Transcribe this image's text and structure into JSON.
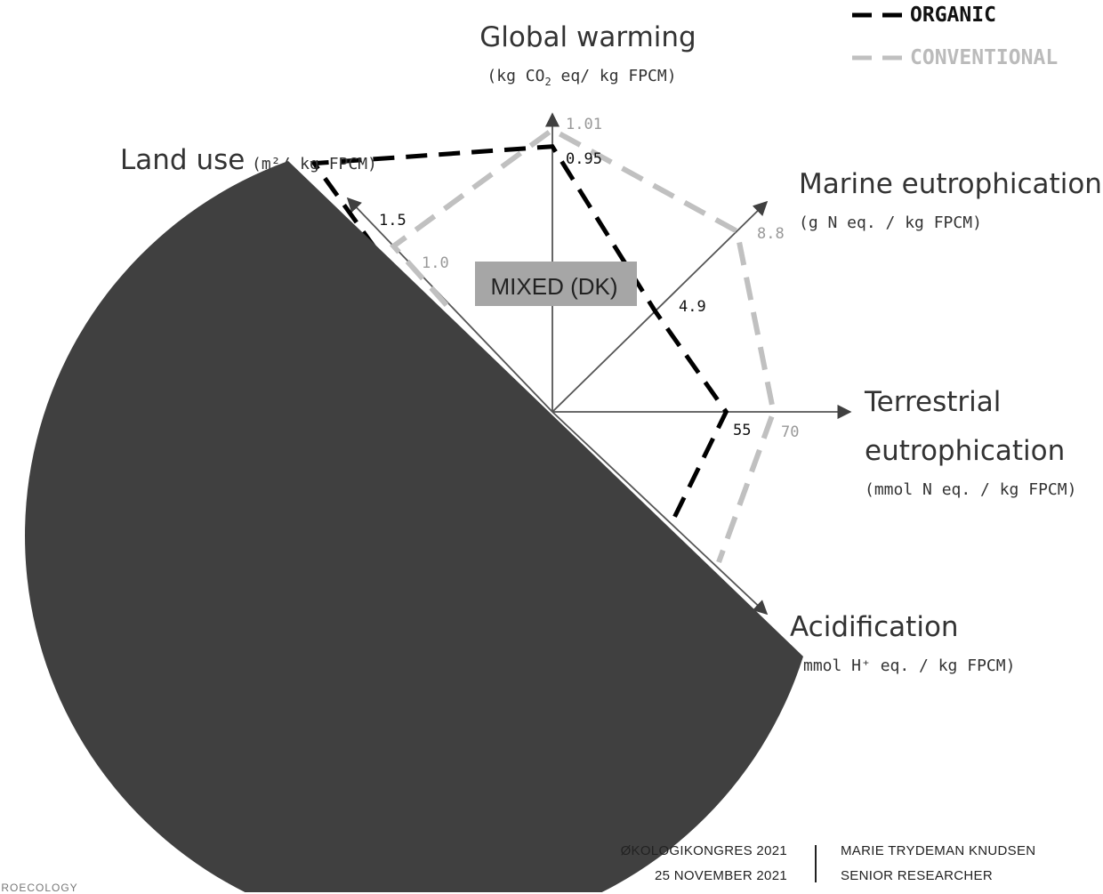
{
  "chart_data": {
    "type": "radar",
    "box_label": "MIXED (DK)",
    "legend": [
      {
        "name": "ORGANIC",
        "color": "#000000"
      },
      {
        "name": "CONVENTIONAL",
        "color": "#c0c0c0"
      }
    ],
    "axes": [
      {
        "key": "gw",
        "title": "Global warming",
        "unit_pre": "(kg CO",
        "unit_sub": "2",
        "unit_post": " eq/ kg FPCM)"
      },
      {
        "key": "me",
        "title": "Marine eutrophication",
        "unit": "(g N eq. / kg FPCM)"
      },
      {
        "key": "te",
        "title_line1": "Terrestrial",
        "title_line2": "eutrophication",
        "unit": "(mmol N eq. / kg FPCM)"
      },
      {
        "key": "ac",
        "title": "Acidification",
        "unit": "mmol H⁺ eq. / kg FPCM)"
      },
      {
        "key": "lu",
        "title": "Land use",
        "unit": "(m²/ kg FPCM)"
      }
    ],
    "series": [
      {
        "name": "ORGANIC",
        "values": {
          "gw": 0.95,
          "me": 4.9,
          "te": 55,
          "lu": 1.5
        }
      },
      {
        "name": "CONVENTIONAL",
        "values": {
          "gw": 1.01,
          "me": 8.8,
          "te": 70,
          "lu": 1.0
        }
      }
    ],
    "data_labels": [
      "1.01",
      "0.95",
      "8.8",
      "4.9",
      "55",
      "70",
      "1.5",
      "1.0"
    ]
  },
  "footer": {
    "event": "ØKOLOGIKONGRES 2021",
    "date": "25 NOVEMBER 2021",
    "author": "MARIE TRYDEMAN KNUDSEN",
    "role": "SENIOR RESEARCHER",
    "corner": "AGROECOLOGY"
  },
  "colors": {
    "overlay": "#404040",
    "box": "#a6a6a6",
    "organic": "#000000",
    "conventional": "#c0c0c0"
  }
}
